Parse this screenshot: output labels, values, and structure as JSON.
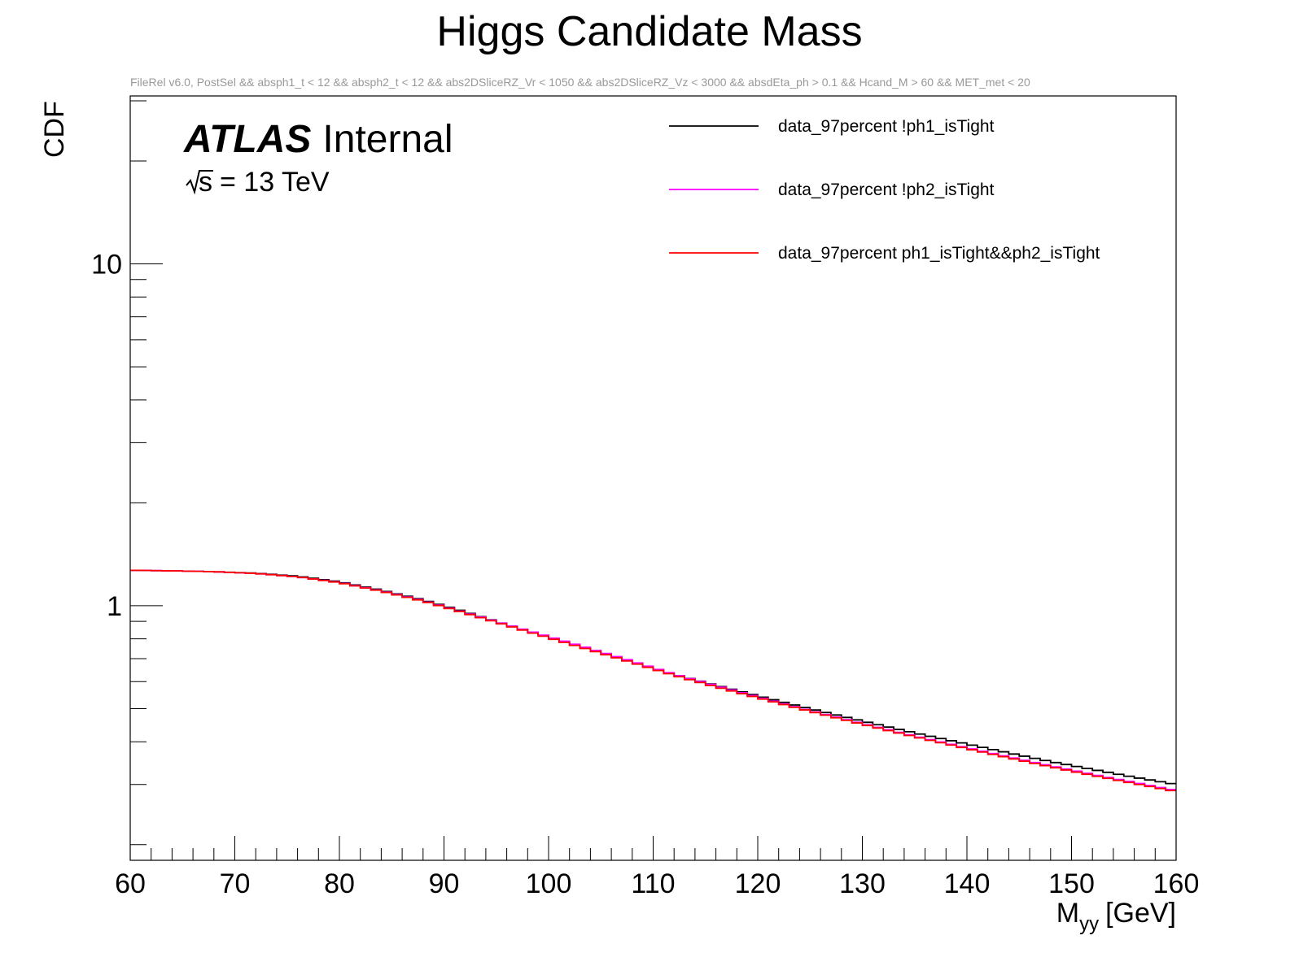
{
  "chart_data": {
    "type": "line",
    "title": "Higgs Candidate Mass",
    "subtitle": "FileRel v6.0, PostSel &&  absph1_t < 12 && absph2_t < 12 && abs2DSliceRZ_Vr < 1050 && abs2DSliceRZ_Vz < 3000 && absdEta_ph > 0.1 && Hcand_M > 60 && MET_met < 20",
    "atlas_label": {
      "bold": "ATLAS",
      "normal": "Internal"
    },
    "energy_label": "= 13 TeV",
    "energy_symbol": "s",
    "xlabel_main": "M",
    "xlabel_sub": "yy",
    "xlabel_unit": "[GeV]",
    "ylabel": "CDF",
    "xlim": [
      60,
      160
    ],
    "ylim": [
      0.18,
      31
    ],
    "yscale": "log",
    "x_major_ticks": [
      60,
      70,
      80,
      90,
      100,
      110,
      120,
      130,
      140,
      150,
      160
    ],
    "x_tick_labels": [
      "60",
      "70",
      "80",
      "90",
      "100",
      "110",
      "120",
      "130",
      "140",
      "150",
      "160"
    ],
    "y_major_ticks": [
      1,
      10
    ],
    "y_tick_labels": [
      "1",
      "10"
    ],
    "y_minor_ticks": [
      0.2,
      0.3,
      0.4,
      0.5,
      0.6,
      0.7,
      0.8,
      0.9,
      2,
      3,
      4,
      5,
      6,
      7,
      8,
      9,
      20,
      30
    ],
    "grid": false,
    "legend_position": "top-right",
    "series": [
      {
        "name": "data_97percent !ph1_isTight",
        "color": "#000000",
        "points": [
          [
            60,
            1.27
          ],
          [
            64,
            1.265
          ],
          [
            68,
            1.258
          ],
          [
            72,
            1.245
          ],
          [
            76,
            1.22
          ],
          [
            80,
            1.175
          ],
          [
            84,
            1.11
          ],
          [
            88,
            1.04
          ],
          [
            92,
            0.96
          ],
          [
            96,
            0.88
          ],
          [
            100,
            0.81
          ],
          [
            104,
            0.745
          ],
          [
            108,
            0.685
          ],
          [
            112,
            0.63
          ],
          [
            116,
            0.585
          ],
          [
            120,
            0.545
          ],
          [
            124,
            0.508
          ],
          [
            128,
            0.475
          ],
          [
            132,
            0.445
          ],
          [
            136,
            0.418
          ],
          [
            140,
            0.394
          ],
          [
            144,
            0.371
          ],
          [
            148,
            0.35
          ],
          [
            152,
            0.332
          ],
          [
            156,
            0.315
          ],
          [
            160,
            0.3
          ]
        ]
      },
      {
        "name": "data_97percent !ph2_isTight",
        "color": "#ff00ff",
        "points": [
          [
            60,
            1.27
          ],
          [
            64,
            1.265
          ],
          [
            68,
            1.258
          ],
          [
            72,
            1.243
          ],
          [
            76,
            1.215
          ],
          [
            80,
            1.17
          ],
          [
            84,
            1.105
          ],
          [
            88,
            1.035
          ],
          [
            92,
            0.955
          ],
          [
            96,
            0.88
          ],
          [
            100,
            0.812
          ],
          [
            104,
            0.748
          ],
          [
            108,
            0.688
          ],
          [
            112,
            0.63
          ],
          [
            116,
            0.583
          ],
          [
            120,
            0.541
          ],
          [
            124,
            0.502
          ],
          [
            128,
            0.468
          ],
          [
            132,
            0.437
          ],
          [
            136,
            0.409
          ],
          [
            140,
            0.384
          ],
          [
            144,
            0.361
          ],
          [
            148,
            0.34
          ],
          [
            152,
            0.321
          ],
          [
            156,
            0.304
          ],
          [
            160,
            0.288
          ]
        ]
      },
      {
        "name": "data_97percent ph1_isTight&&ph2_isTight",
        "color": "#ff0000",
        "points": [
          [
            60,
            1.27
          ],
          [
            64,
            1.265
          ],
          [
            68,
            1.258
          ],
          [
            72,
            1.243
          ],
          [
            76,
            1.215
          ],
          [
            80,
            1.168
          ],
          [
            84,
            1.103
          ],
          [
            88,
            1.032
          ],
          [
            92,
            0.952
          ],
          [
            96,
            0.876
          ],
          [
            100,
            0.806
          ],
          [
            104,
            0.742
          ],
          [
            108,
            0.682
          ],
          [
            112,
            0.626
          ],
          [
            116,
            0.579
          ],
          [
            120,
            0.538
          ],
          [
            124,
            0.5
          ],
          [
            128,
            0.466
          ],
          [
            132,
            0.435
          ],
          [
            136,
            0.407
          ],
          [
            140,
            0.382
          ],
          [
            144,
            0.359
          ],
          [
            148,
            0.338
          ],
          [
            152,
            0.319
          ],
          [
            156,
            0.302
          ],
          [
            160,
            0.286
          ]
        ]
      }
    ]
  }
}
